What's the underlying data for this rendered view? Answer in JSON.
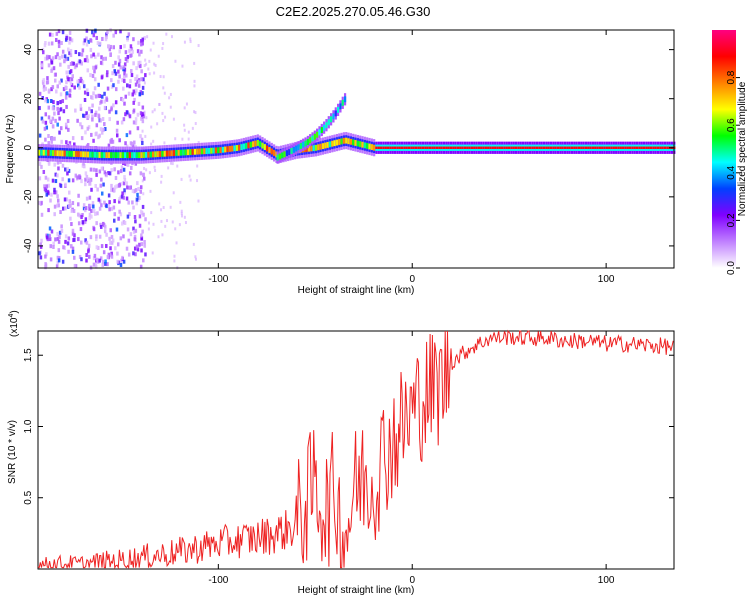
{
  "title": "C2E2.2025.270.05.46.G30",
  "chart_data": [
    {
      "type": "heatmap",
      "name": "spectrogram",
      "xlabel": "Height of straight line (km)",
      "ylabel": "Frequency (Hz)",
      "xlim": [
        -193,
        135
      ],
      "ylim": [
        -49,
        48
      ],
      "xticks": [
        -100,
        0,
        100
      ],
      "xtick_labels": [
        "-100",
        "0",
        "100"
      ],
      "yticks": [
        -40,
        -20,
        0,
        20,
        40
      ],
      "ytick_labels": [
        "-40",
        "-20",
        "0",
        "20",
        "40"
      ],
      "colorbar": {
        "label": "Normalized spectral amplitude",
        "range": [
          0,
          1
        ],
        "ticks": [
          0,
          0.2,
          0.4,
          0.6,
          0.8
        ],
        "tick_labels": [
          "0.0",
          "0.2",
          "0.4",
          "0.6",
          "0.8"
        ],
        "colors": [
          "#ffffff",
          "#c080ff",
          "#8000ff",
          "#0040ff",
          "#00ffff",
          "#00ff00",
          "#ffff00",
          "#ff8000",
          "#ff0000",
          "#ff0080"
        ]
      },
      "ridge": {
        "x": [
          -190,
          -160,
          -140,
          -120,
          -100,
          -90,
          -80,
          -70,
          -60,
          -50,
          -40,
          -35,
          -30,
          -20,
          -10,
          0,
          10,
          20,
          135
        ],
        "freq": [
          -2,
          -3,
          -3,
          -2,
          -1,
          0,
          2,
          -3,
          -1,
          0,
          2,
          3,
          2,
          0,
          0,
          0,
          0,
          0,
          0
        ]
      },
      "branch": {
        "x": [
          -70,
          -62,
          -55,
          -50,
          -45,
          -40,
          -35
        ],
        "freq": [
          -4,
          -1,
          2,
          5,
          9,
          14,
          20
        ]
      },
      "notes": "Broadband scatter between -190 and -140 km; strong narrow line near 0 Hz beyond -20 km"
    },
    {
      "type": "line",
      "name": "snr",
      "xlabel": "Height of straight line (km)",
      "ylabel": "SNR (10 * v/v)",
      "yscale_label_base": "(x10",
      "yscale_label_exp": "4",
      "yscale_label_end": ")",
      "xlim": [
        -193,
        135
      ],
      "ylim": [
        0,
        1.67
      ],
      "xticks": [
        -100,
        0,
        100
      ],
      "xtick_labels": [
        "-100",
        "0",
        "100"
      ],
      "yticks": [
        0.5,
        1.0,
        1.5
      ],
      "ytick_labels": [
        "0.5",
        "1.0",
        "1.5"
      ],
      "color": "#ee2222",
      "series": [
        {
          "name": "SNR",
          "x": [
            -193,
            -180,
            -170,
            -160,
            -150,
            -140,
            -130,
            -120,
            -110,
            -100,
            -90,
            -80,
            -70,
            -60,
            -55,
            -50,
            -45,
            -40,
            -35,
            -30,
            -25,
            -20,
            -15,
            -10,
            -5,
            0,
            5,
            10,
            15,
            20,
            25,
            30,
            40,
            50,
            60,
            70,
            80,
            90,
            100,
            110,
            120,
            135
          ],
          "y": [
            0.03,
            0.04,
            0.03,
            0.05,
            0.06,
            0.08,
            0.1,
            0.12,
            0.15,
            0.18,
            0.2,
            0.22,
            0.25,
            0.3,
            0.45,
            0.6,
            0.4,
            0.55,
            0.2,
            0.55,
            0.65,
            0.6,
            0.8,
            0.9,
            1.0,
            1.1,
            1.2,
            1.25,
            1.3,
            1.45,
            1.5,
            1.55,
            1.62,
            1.63,
            1.62,
            1.62,
            1.6,
            1.6,
            1.58,
            1.58,
            1.57,
            1.56
          ]
        }
      ]
    }
  ]
}
